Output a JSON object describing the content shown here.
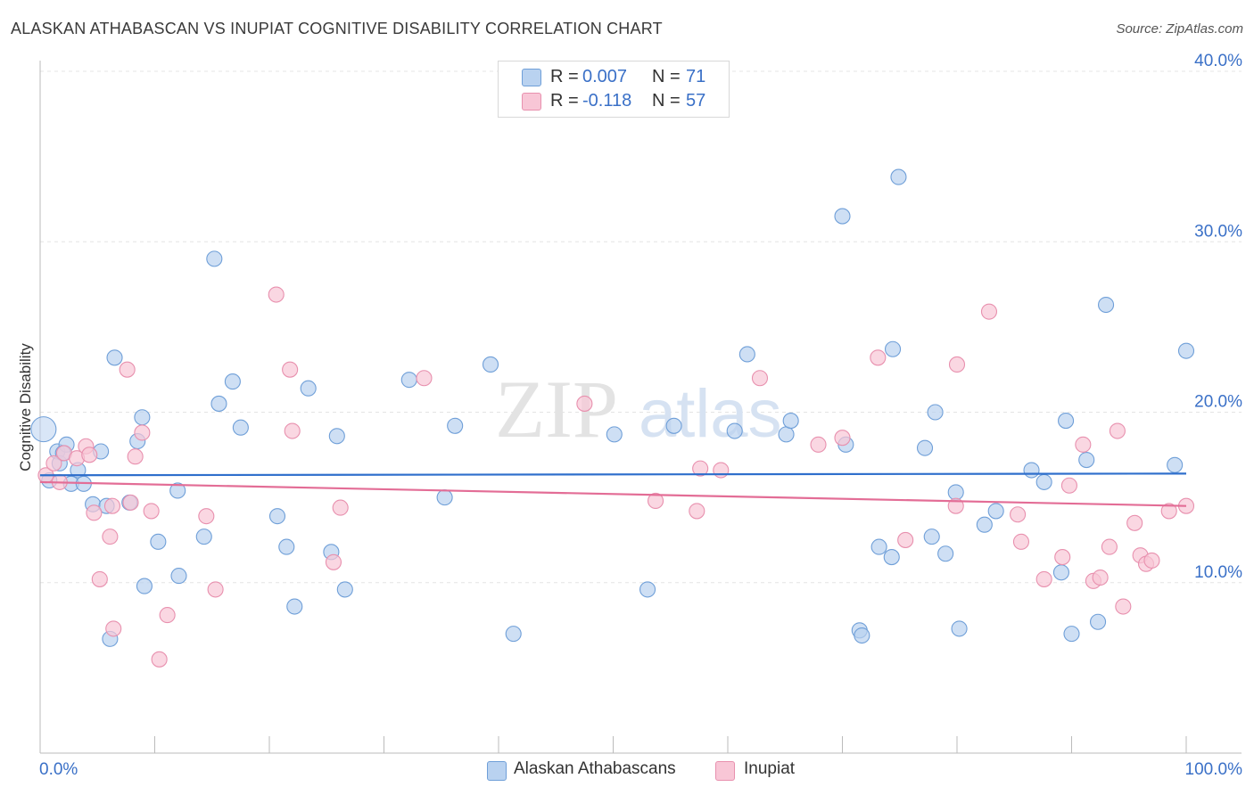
{
  "title": "ALASKAN ATHABASCAN VS INUPIAT COGNITIVE DISABILITY CORRELATION CHART",
  "source": "Source: ZipAtlas.com",
  "watermark": {
    "part1": "ZIP",
    "part2": "atlas"
  },
  "legend_top": [
    {
      "r_label": "R =",
      "r_value": "0.007",
      "n_label": "N =",
      "n_value": "71"
    },
    {
      "r_label": "R =",
      "r_value": "-0.118",
      "n_label": "N =",
      "n_value": "57"
    }
  ],
  "legend_bottom": [
    "Alaskan Athabascans",
    "Inupiat"
  ],
  "colors": {
    "blue_fill": "#b9d2f0",
    "blue_stroke": "#6f9fd8",
    "blue_line": "#2f6fcc",
    "pink_fill": "#f8c6d6",
    "pink_stroke": "#e890ae",
    "pink_line": "#e36d96",
    "tick_label": "#3a70c7",
    "grid": "#e4e4e4"
  },
  "chart_data": {
    "type": "scatter",
    "title": "ALASKAN ATHABASCAN VS INUPIAT COGNITIVE DISABILITY CORRELATION CHART",
    "xlabel": "",
    "ylabel": "Cognitive Disability",
    "xlim": [
      0,
      100
    ],
    "ylim": [
      0,
      40
    ],
    "x_tick_labels": [
      "0.0%",
      "100.0%"
    ],
    "y_ticks": [
      10,
      20,
      30,
      40
    ],
    "y_tick_labels": [
      "10.0%",
      "20.0%",
      "30.0%",
      "40.0%"
    ],
    "series": [
      {
        "name": "Alaskan Athabascans",
        "r": 0.007,
        "n": 71,
        "trend": {
          "x": [
            0,
            100
          ],
          "y": [
            16.3,
            16.4
          ]
        },
        "points": [
          [
            0.3,
            19.0
          ],
          [
            0.8,
            16.0
          ],
          [
            1.5,
            17.7
          ],
          [
            1.7,
            17.0
          ],
          [
            2.3,
            18.1
          ],
          [
            2.7,
            15.8
          ],
          [
            3.3,
            16.6
          ],
          [
            3.8,
            15.8
          ],
          [
            4.6,
            14.6
          ],
          [
            5.3,
            17.7
          ],
          [
            5.8,
            14.5
          ],
          [
            6.1,
            6.7
          ],
          [
            6.5,
            23.2
          ],
          [
            7.8,
            14.7
          ],
          [
            8.5,
            18.3
          ],
          [
            8.9,
            19.7
          ],
          [
            9.1,
            9.8
          ],
          [
            10.3,
            12.4
          ],
          [
            12.0,
            15.4
          ],
          [
            12.1,
            10.4
          ],
          [
            14.3,
            12.7
          ],
          [
            15.2,
            29.0
          ],
          [
            15.6,
            20.5
          ],
          [
            16.8,
            21.8
          ],
          [
            17.5,
            19.1
          ],
          [
            20.7,
            13.9
          ],
          [
            21.5,
            12.1
          ],
          [
            22.2,
            8.6
          ],
          [
            23.4,
            21.4
          ],
          [
            25.4,
            11.8
          ],
          [
            25.9,
            18.6
          ],
          [
            26.6,
            9.6
          ],
          [
            32.2,
            21.9
          ],
          [
            35.3,
            15.0
          ],
          [
            36.2,
            19.2
          ],
          [
            39.3,
            22.8
          ],
          [
            41.3,
            7.0
          ],
          [
            50.1,
            18.7
          ],
          [
            53.0,
            9.6
          ],
          [
            55.3,
            19.2
          ],
          [
            60.6,
            18.9
          ],
          [
            61.7,
            23.4
          ],
          [
            65.1,
            18.7
          ],
          [
            65.5,
            19.5
          ],
          [
            70.0,
            31.5
          ],
          [
            70.3,
            18.1
          ],
          [
            71.5,
            7.2
          ],
          [
            71.7,
            6.9
          ],
          [
            73.2,
            12.1
          ],
          [
            74.3,
            11.5
          ],
          [
            74.4,
            23.7
          ],
          [
            74.9,
            33.8
          ],
          [
            77.2,
            17.9
          ],
          [
            77.8,
            12.7
          ],
          [
            78.1,
            20.0
          ],
          [
            79.0,
            11.7
          ],
          [
            79.9,
            15.3
          ],
          [
            80.2,
            7.3
          ],
          [
            82.4,
            13.4
          ],
          [
            83.4,
            14.2
          ],
          [
            86.5,
            16.6
          ],
          [
            87.6,
            15.9
          ],
          [
            89.1,
            10.6
          ],
          [
            89.5,
            19.5
          ],
          [
            90.0,
            7.0
          ],
          [
            91.3,
            17.2
          ],
          [
            92.3,
            7.7
          ],
          [
            93.0,
            26.3
          ],
          [
            99.0,
            16.9
          ],
          [
            100.0,
            23.6
          ],
          [
            2.0,
            17.6
          ]
        ]
      },
      {
        "name": "Inupiat",
        "r": -0.118,
        "n": 57,
        "trend": {
          "x": [
            0,
            100
          ],
          "y": [
            15.9,
            14.5
          ]
        },
        "points": [
          [
            0.5,
            16.3
          ],
          [
            1.2,
            17.0
          ],
          [
            1.7,
            15.9
          ],
          [
            2.1,
            17.6
          ],
          [
            3.2,
            17.3
          ],
          [
            4.0,
            18.0
          ],
          [
            4.3,
            17.5
          ],
          [
            4.7,
            14.1
          ],
          [
            5.2,
            10.2
          ],
          [
            6.1,
            12.7
          ],
          [
            6.3,
            14.5
          ],
          [
            6.4,
            7.3
          ],
          [
            7.6,
            22.5
          ],
          [
            7.9,
            14.7
          ],
          [
            8.3,
            17.4
          ],
          [
            8.9,
            18.8
          ],
          [
            9.7,
            14.2
          ],
          [
            10.4,
            5.5
          ],
          [
            11.1,
            8.1
          ],
          [
            14.5,
            13.9
          ],
          [
            15.3,
            9.6
          ],
          [
            20.6,
            26.9
          ],
          [
            21.8,
            22.5
          ],
          [
            22.0,
            18.9
          ],
          [
            25.6,
            11.2
          ],
          [
            26.2,
            14.4
          ],
          [
            33.5,
            22.0
          ],
          [
            47.5,
            20.5
          ],
          [
            53.7,
            14.8
          ],
          [
            57.3,
            14.2
          ],
          [
            57.6,
            16.7
          ],
          [
            59.4,
            16.6
          ],
          [
            62.8,
            22.0
          ],
          [
            67.9,
            18.1
          ],
          [
            70.0,
            18.5
          ],
          [
            73.1,
            23.2
          ],
          [
            75.5,
            12.5
          ],
          [
            79.9,
            14.5
          ],
          [
            80.0,
            22.8
          ],
          [
            82.8,
            25.9
          ],
          [
            85.3,
            14.0
          ],
          [
            85.6,
            12.4
          ],
          [
            87.6,
            10.2
          ],
          [
            89.2,
            11.5
          ],
          [
            89.8,
            15.7
          ],
          [
            91.0,
            18.1
          ],
          [
            91.9,
            10.1
          ],
          [
            92.5,
            10.3
          ],
          [
            93.3,
            12.1
          ],
          [
            94.0,
            18.9
          ],
          [
            94.5,
            8.6
          ],
          [
            95.5,
            13.5
          ],
          [
            96.0,
            11.6
          ],
          [
            96.5,
            11.1
          ],
          [
            97.0,
            11.3
          ],
          [
            98.5,
            14.2
          ],
          [
            100.0,
            14.5
          ]
        ]
      }
    ]
  }
}
